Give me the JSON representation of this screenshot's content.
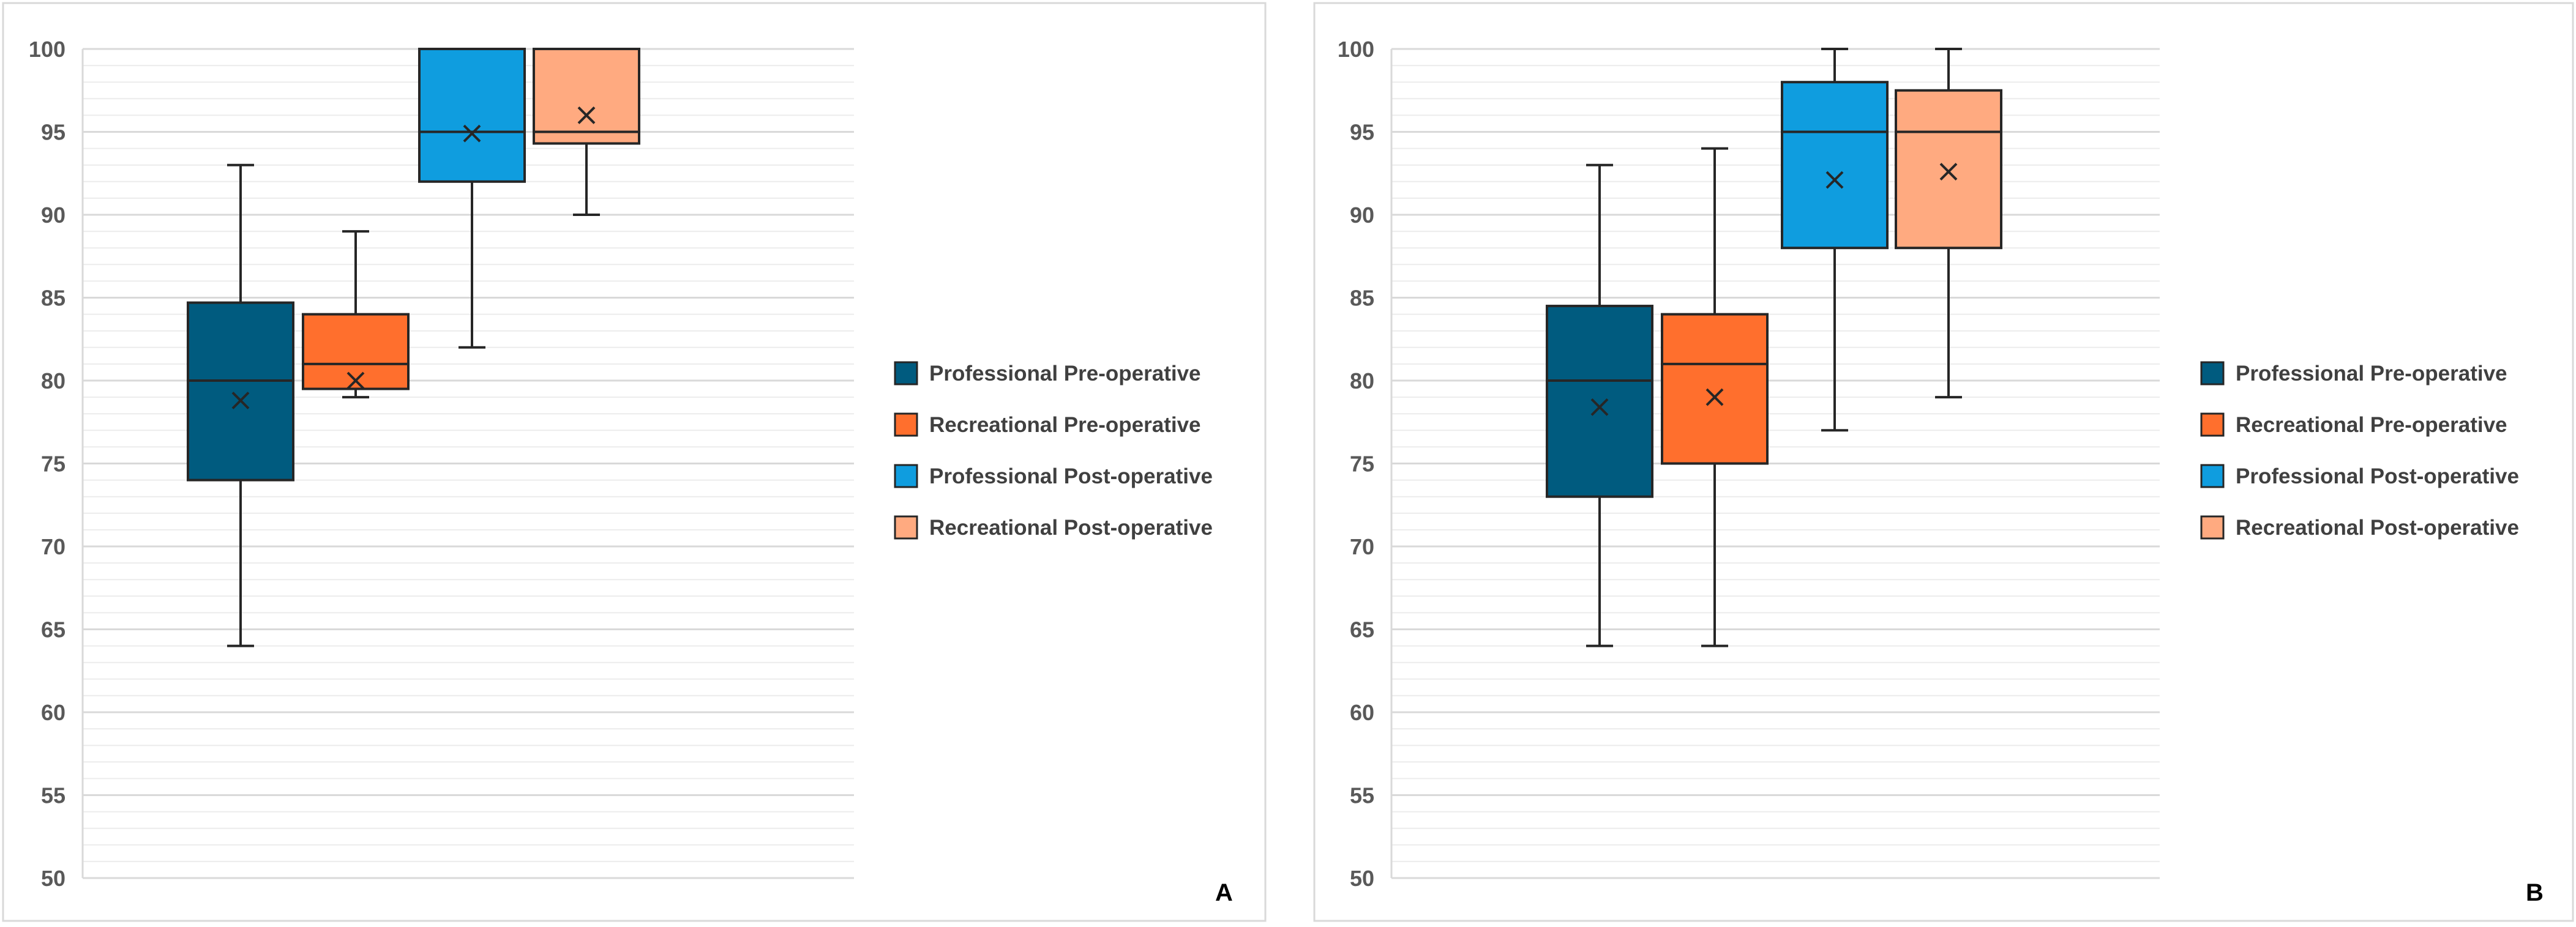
{
  "chart_data": [
    {
      "type": "boxplot",
      "panel_label": "A",
      "ylim": [
        50,
        100
      ],
      "y_major_ticks": [
        50,
        55,
        60,
        65,
        70,
        75,
        80,
        85,
        90,
        95,
        100
      ],
      "y_minor_step": 1,
      "grid": true,
      "legend_position": "right",
      "series": [
        {
          "name": "Professional Pre-operative",
          "color": "#005b7f",
          "min": 64,
          "q1": 74,
          "median": 80,
          "q3": 84.7,
          "max": 93,
          "mean": 78.8
        },
        {
          "name": "Recreational Pre-operative",
          "color": "#ff6f2d",
          "min": 79,
          "q1": 79.5,
          "median": 81,
          "q3": 84,
          "max": 89,
          "mean": 80
        },
        {
          "name": "Professional Post-operative",
          "color": "#0f9ddf",
          "min": 82,
          "q1": 92,
          "median": 95,
          "q3": 100,
          "max": 100,
          "mean": 94.9
        },
        {
          "name": "Recreational Post-operative",
          "color": "#ffaa80",
          "min": 90,
          "q1": 94.3,
          "median": 95,
          "q3": 100,
          "max": 100,
          "mean": 96
        }
      ]
    },
    {
      "type": "boxplot",
      "panel_label": "B",
      "ylim": [
        50,
        100
      ],
      "y_major_ticks": [
        50,
        55,
        60,
        65,
        70,
        75,
        80,
        85,
        90,
        95,
        100
      ],
      "y_minor_step": 1,
      "grid": true,
      "legend_position": "right",
      "series": [
        {
          "name": "Professional Pre-operative",
          "color": "#005b7f",
          "min": 64,
          "q1": 73,
          "median": 80,
          "q3": 84.5,
          "max": 93,
          "mean": 78.4
        },
        {
          "name": "Recreational Pre-operative",
          "color": "#ff6f2d",
          "min": 64,
          "q1": 75,
          "median": 81,
          "q3": 84,
          "max": 94,
          "mean": 79
        },
        {
          "name": "Professional Post-operative",
          "color": "#0f9ddf",
          "min": 77,
          "q1": 88,
          "median": 95,
          "q3": 98,
          "max": 100,
          "mean": 92.1
        },
        {
          "name": "Recreational Post-operative",
          "color": "#ffaa80",
          "min": 79,
          "q1": 88,
          "median": 95,
          "q3": 97.5,
          "max": 100,
          "mean": 92.6
        }
      ]
    }
  ]
}
